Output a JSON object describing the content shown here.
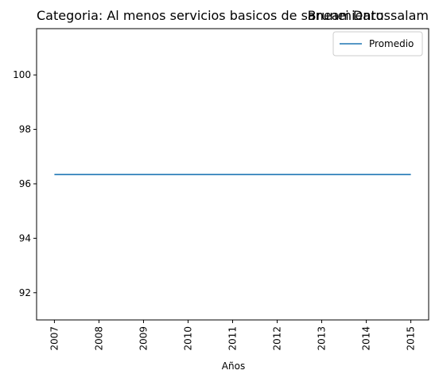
{
  "chart_data": {
    "type": "line",
    "title_left": "Categoria: Al menos servicios basicos de saneamiento",
    "title_right": "Brunei Darussalam",
    "xlabel": "Años",
    "ylabel": "",
    "x": [
      2007,
      2008,
      2009,
      2010,
      2011,
      2012,
      2013,
      2014,
      2015
    ],
    "series": [
      {
        "name": "Promedio",
        "color": "#1f77b4",
        "values": [
          96.34,
          96.34,
          96.34,
          96.34,
          96.34,
          96.34,
          96.34,
          96.34,
          96.34
        ]
      }
    ],
    "xlim": [
      2006.6,
      2015.4
    ],
    "ylim": [
      91.0,
      101.7
    ],
    "yticks": [
      92,
      94,
      96,
      98,
      100
    ],
    "xticks": [
      2007,
      2008,
      2009,
      2010,
      2011,
      2012,
      2013,
      2014,
      2015
    ],
    "xtick_rotation": "vertical",
    "grid": false,
    "legend_position": "top-right"
  }
}
